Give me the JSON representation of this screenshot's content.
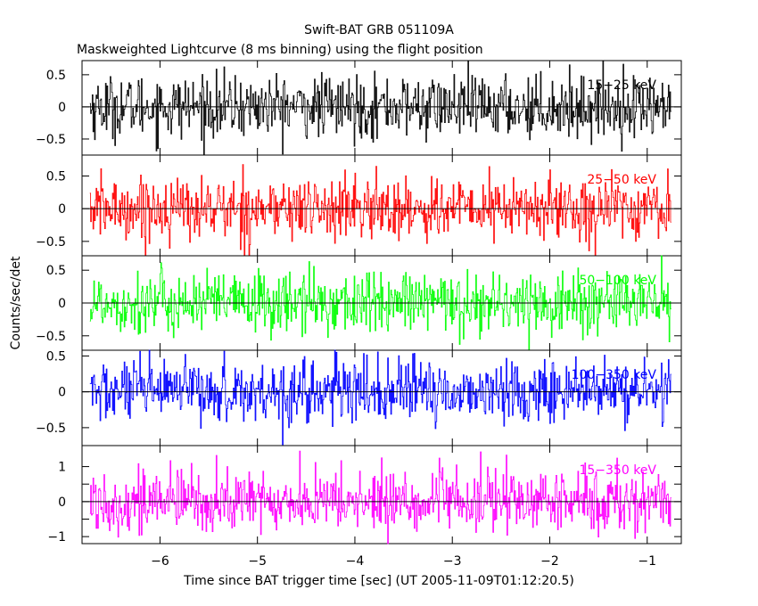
{
  "chart_data": {
    "type": "line",
    "title": "Swift-BAT GRB 051109A",
    "subtitle": "Maskweighted Lightcurve (8 ms binning) using the flight position",
    "xlabel": "Time since BAT trigger time [sec] (UT 2005-11-09T01:12:20.5)",
    "ylabel": "Counts/sec/det",
    "xlim": [
      -6.8,
      -0.65
    ],
    "x_range": [
      -6.72,
      -0.75
    ],
    "bin_size_sec": 0.008,
    "x_ticks": [
      -6,
      -5,
      -4,
      -3,
      -2,
      -1
    ],
    "x_tick_labels": [
      "−6",
      "−5",
      "−4",
      "−3",
      "−2",
      "−1"
    ],
    "panels": [
      {
        "name": "15-25 keV",
        "label": "15−25 keV",
        "color": "#000000",
        "ylim": [
          -0.75,
          0.72
        ],
        "ticks": [
          0.5,
          0,
          -0.5
        ],
        "tick_labels": [
          "0.5",
          "0",
          "−0.5"
        ],
        "noise_sigma": 0.24,
        "label_color": "#000000"
      },
      {
        "name": "25-50 keV",
        "label": "25−50 keV",
        "color": "#ff0000",
        "ylim": [
          -0.72,
          0.82
        ],
        "ticks": [
          0.5,
          0,
          -0.5
        ],
        "tick_labels": [
          "0.5",
          "0",
          "−0.5"
        ],
        "noise_sigma": 0.24,
        "label_color": "#ff0000"
      },
      {
        "name": "50-100 keV",
        "label": "50−100 keV",
        "color": "#00ff00",
        "ylim": [
          -0.72,
          0.72
        ],
        "ticks": [
          0.5,
          0,
          -0.5
        ],
        "tick_labels": [
          "0.5",
          "0",
          "−0.5"
        ],
        "noise_sigma": 0.24,
        "label_color": "#00ff00"
      },
      {
        "name": "100-350 keV",
        "label": "100−350 keV",
        "color": "#0000ff",
        "ylim": [
          -0.75,
          0.58
        ],
        "ticks": [
          0.5,
          0,
          -0.5
        ],
        "tick_labels": [
          "0.5",
          "0",
          "−0.5"
        ],
        "noise_sigma": 0.22,
        "label_color": "#0000ff"
      },
      {
        "name": "15-350 keV",
        "label": "15−350 keV",
        "color": "#ff00ff",
        "ylim": [
          -1.2,
          1.6
        ],
        "ticks": [
          1,
          0.5,
          0,
          -0.5,
          -1
        ],
        "tick_labels": [
          "1",
          "",
          "0",
          "",
          "−1"
        ],
        "noise_sigma": 0.45,
        "label_color": "#ff00ff"
      }
    ]
  }
}
